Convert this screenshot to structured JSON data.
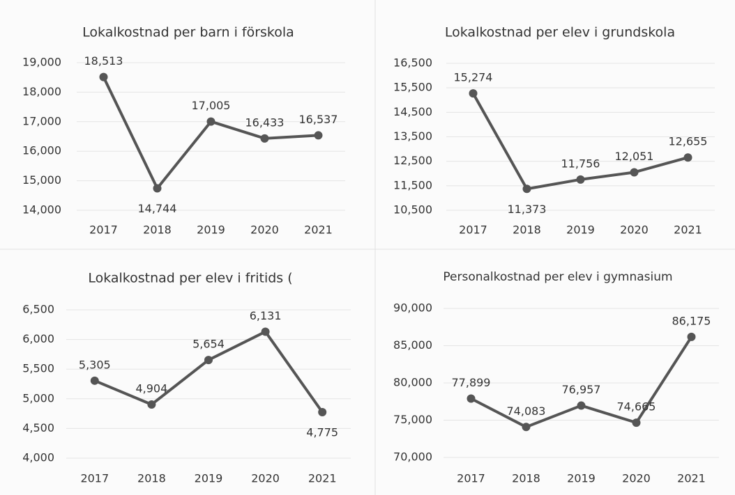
{
  "chart_data": [
    {
      "type": "line",
      "title": "Lokalkostnad per barn i förskola",
      "categories": [
        "2017",
        "2018",
        "2019",
        "2020",
        "2021"
      ],
      "series": [
        {
          "color": "#555555",
          "values": [
            18513,
            14744,
            17005,
            16433,
            16537
          ],
          "value_labels": [
            "18,513",
            "14,744",
            "17,005",
            "16,433",
            "16,537"
          ]
        }
      ],
      "ylim": [
        14000,
        19000
      ],
      "yticks": [
        {
          "value": 14000,
          "label": "14,000"
        },
        {
          "value": 15000,
          "label": "15,000"
        },
        {
          "value": 16000,
          "label": "16,000"
        },
        {
          "value": 17000,
          "label": "17,000"
        },
        {
          "value": 18000,
          "label": "18,000"
        },
        {
          "value": 19000,
          "label": "19,000"
        }
      ],
      "grid": true
    },
    {
      "type": "line",
      "title": "Lokalkostnad per elev i grundskola",
      "categories": [
        "2017",
        "2018",
        "2019",
        "2020",
        "2021"
      ],
      "series": [
        {
          "color": "#555555",
          "values": [
            15274,
            11373,
            11756,
            12051,
            12655
          ],
          "value_labels": [
            "15,274",
            "11,373",
            "11,756",
            "12,051",
            "12,655"
          ]
        }
      ],
      "ylim": [
        10500,
        16500
      ],
      "yticks": [
        {
          "value": 10500,
          "label": "10,500"
        },
        {
          "value": 11500,
          "label": "11,500"
        },
        {
          "value": 12500,
          "label": "12,500"
        },
        {
          "value": 13500,
          "label": "13,500"
        },
        {
          "value": 14500,
          "label": "14,500"
        },
        {
          "value": 15500,
          "label": "15,500"
        },
        {
          "value": 16500,
          "label": "16,500"
        }
      ],
      "grid": true
    },
    {
      "type": "line",
      "title": "Lokalkostnad per elev i fritids (",
      "categories": [
        "2017",
        "2018",
        "2019",
        "2020",
        "2021"
      ],
      "series": [
        {
          "color": "#555555",
          "values": [
            5305,
            4904,
            5654,
            6131,
            4775
          ],
          "value_labels": [
            "5,305",
            "4,904",
            "5,654",
            "6,131",
            "4,775"
          ]
        }
      ],
      "ylim": [
        4000,
        6500
      ],
      "yticks": [
        {
          "value": 4000,
          "label": "4,000"
        },
        {
          "value": 4500,
          "label": "4,500"
        },
        {
          "value": 5000,
          "label": "5,000"
        },
        {
          "value": 5500,
          "label": "5,500"
        },
        {
          "value": 6000,
          "label": "6,000"
        },
        {
          "value": 6500,
          "label": "6,500"
        }
      ],
      "grid": true
    },
    {
      "type": "line",
      "title": "Personalkostnad per elev i gymnasium",
      "categories": [
        "2017",
        "2018",
        "2019",
        "2020",
        "2021"
      ],
      "series": [
        {
          "color": "#555555",
          "values": [
            77899,
            74083,
            76957,
            74665,
            86175
          ],
          "value_labels": [
            "77,899",
            "74,083",
            "76,957",
            "74,665",
            "86,175"
          ]
        }
      ],
      "ylim": [
        70000,
        90000
      ],
      "yticks": [
        {
          "value": 70000,
          "label": "70,000"
        },
        {
          "value": 75000,
          "label": "75,000"
        },
        {
          "value": 80000,
          "label": "80,000"
        },
        {
          "value": 85000,
          "label": "85,000"
        },
        {
          "value": 90000,
          "label": "90,000"
        }
      ],
      "grid": true
    }
  ]
}
